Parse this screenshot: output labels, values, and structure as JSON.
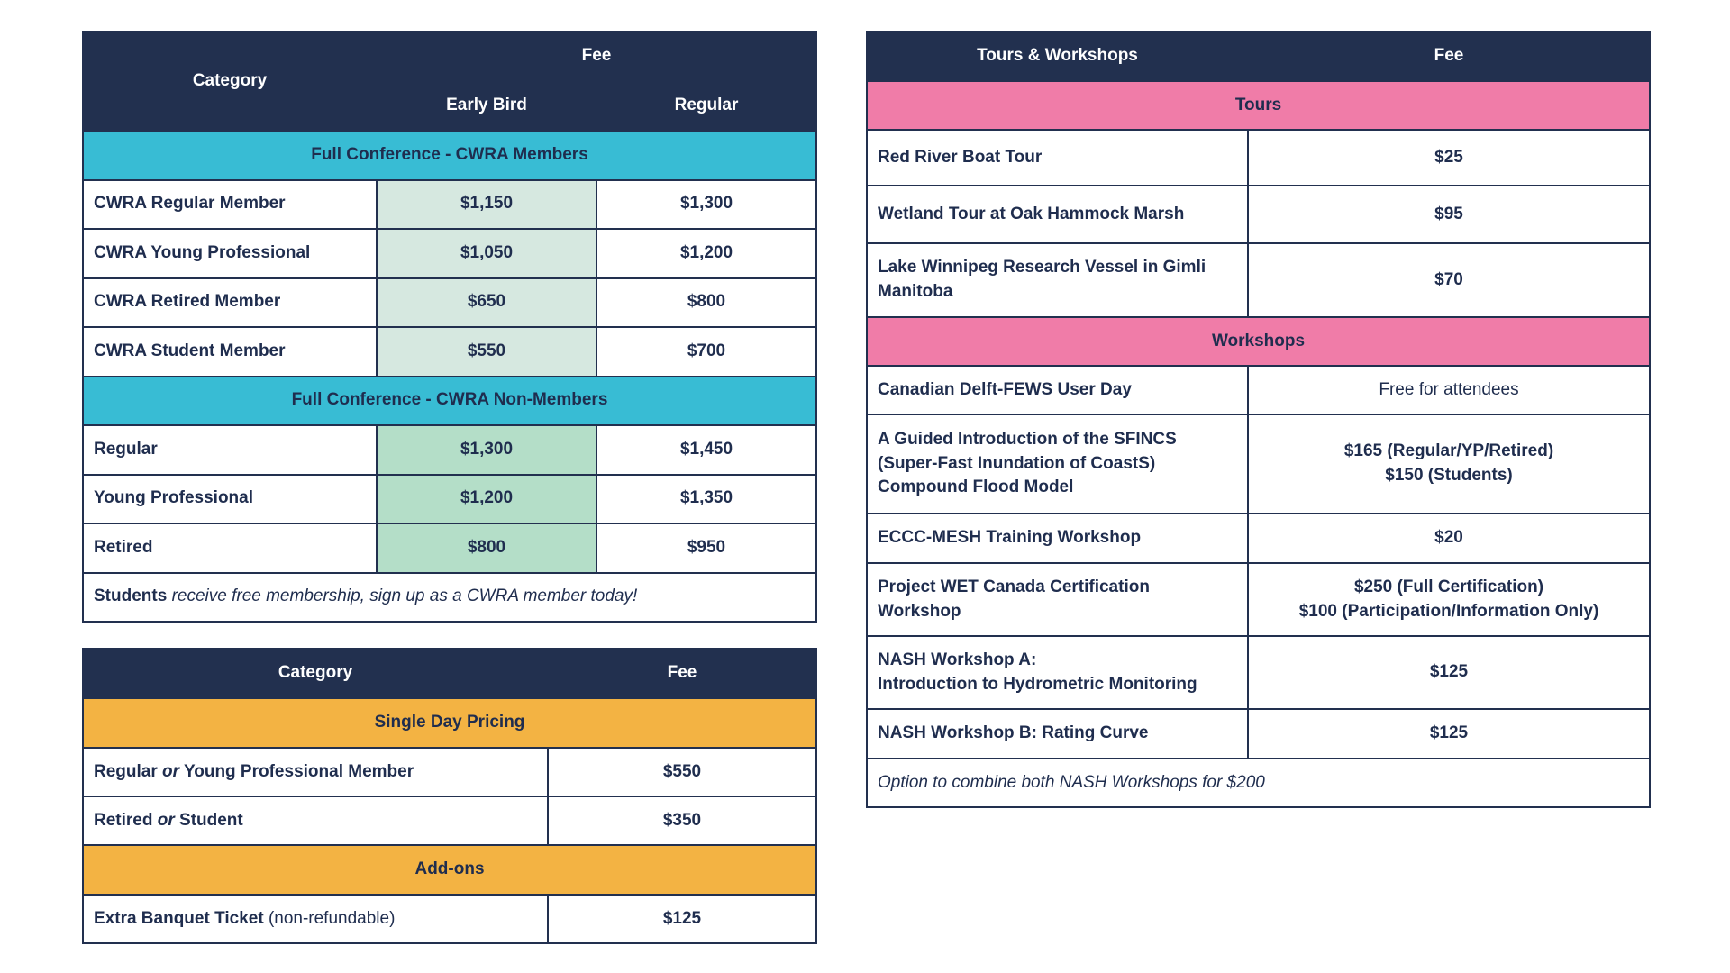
{
  "registration": {
    "header": {
      "category": "Category",
      "fee": "Fee",
      "early_bird": "Early Bird",
      "regular": "Regular"
    },
    "sections": [
      {
        "title": "Full Conference - CWRA Members",
        "rows": [
          [
            "CWRA Regular Member",
            "$1,150",
            "$1,300"
          ],
          [
            "CWRA Young Professional",
            "$1,050",
            "$1,200"
          ],
          [
            "CWRA Retired Member",
            "$650",
            "$800"
          ],
          [
            "CWRA Student Member",
            "$550",
            "$700"
          ]
        ]
      },
      {
        "title": "Full Conference - CWRA Non-Members",
        "rows": [
          [
            "Regular",
            "$1,300",
            "$1,450"
          ],
          [
            "Young Professional",
            "$1,200",
            "$1,350"
          ],
          [
            "Retired",
            "$800",
            "$950"
          ]
        ]
      }
    ],
    "note": [
      {
        "text": "Students",
        "style": "bold"
      },
      {
        "text": "receive free membership, sign up as a CWRA member today!",
        "style": "italic"
      }
    ]
  },
  "single_day": {
    "header": {
      "category": "Category",
      "fee": "Fee"
    },
    "sections": [
      {
        "title": "Single Day Pricing",
        "rows": [
          [
            [
              {
                "text": "Regular",
                "style": "bold"
              },
              {
                "text": "or",
                "style": "bold-italic"
              },
              {
                "text": "Young Professional Member",
                "style": "bold"
              }
            ],
            "$550"
          ],
          [
            [
              {
                "text": "Retired",
                "style": "bold"
              },
              {
                "text": "or",
                "style": "bold-italic"
              },
              {
                "text": "Student",
                "style": "bold"
              }
            ],
            "$350"
          ]
        ]
      },
      {
        "title": "Add-ons",
        "rows": [
          [
            [
              {
                "text": "Extra Banquet Ticket",
                "style": "bold"
              },
              {
                "text": "(non-refundable)",
                "style": "normal"
              }
            ],
            "$125"
          ]
        ]
      }
    ]
  },
  "tours": {
    "header": {
      "category": "Tours & Workshops",
      "fee": "Fee"
    },
    "sections": [
      {
        "title": "Tours",
        "rows": [
          [
            "Red River Boat Tour",
            "$25"
          ],
          [
            "Wetland Tour at Oak Hammock Marsh",
            "$95"
          ],
          [
            "Lake Winnipeg Research Vessel in Gimli Manitoba",
            "$70"
          ]
        ]
      },
      {
        "title": "Workshops",
        "rows": [
          [
            "Canadian Delft-FEWS User Day",
            [
              {
                "text": "Free for attendees",
                "style": "normal"
              }
            ]
          ],
          [
            "A Guided Introduction of the SFINCS (Super-Fast Inundation of CoastS) Compound Flood Model",
            [
              "$165 (Regular/YP/Retired)",
              "$150 (Students)"
            ]
          ],
          [
            "ECCC-MESH Training Workshop",
            "$20"
          ],
          [
            "Project WET Canada Certification Workshop",
            [
              "$250 (Full Certification)",
              "$100 (Participation/Information Only)"
            ]
          ],
          [
            [
              "NASH Workshop A:",
              "Introduction to Hydrometric Monitoring"
            ],
            "$125"
          ],
          [
            "NASH Workshop B: Rating Curve",
            "$125"
          ]
        ]
      }
    ],
    "note": [
      {
        "text": "Option to combine both NASH Workshops for $200",
        "style": "italic"
      }
    ]
  }
}
